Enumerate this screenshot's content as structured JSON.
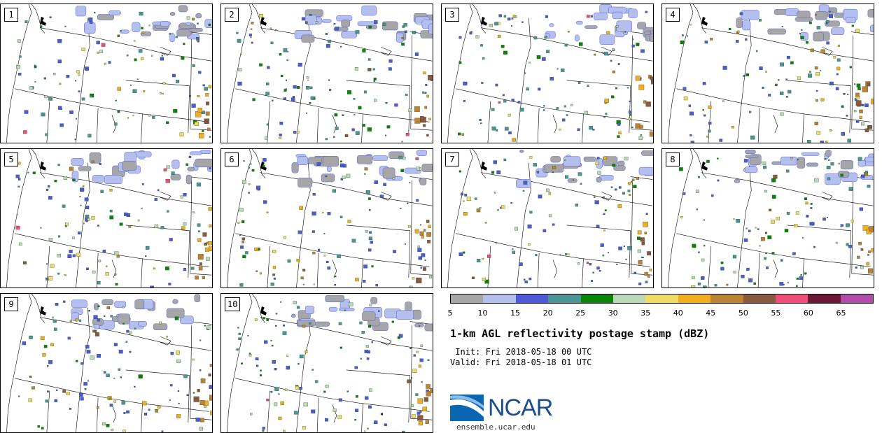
{
  "stamps": [
    {
      "label": "1",
      "seed": 11
    },
    {
      "label": "2",
      "seed": 23
    },
    {
      "label": "3",
      "seed": 37
    },
    {
      "label": "4",
      "seed": 41
    },
    {
      "label": "5",
      "seed": 53
    },
    {
      "label": "6",
      "seed": 67
    },
    {
      "label": "7",
      "seed": 71
    },
    {
      "label": "8",
      "seed": 83
    },
    {
      "label": "9",
      "seed": 97
    },
    {
      "label": "10",
      "seed": 109
    }
  ],
  "colorbar": {
    "ticks": [
      "5",
      "10",
      "15",
      "20",
      "25",
      "30",
      "35",
      "40",
      "45",
      "50",
      "55",
      "60",
      "65"
    ],
    "colors": [
      "#a6a6a6",
      "#b4bfee",
      "#4d5bdb",
      "#4b9596",
      "#0b8508",
      "#b9d9b8",
      "#f0dc62",
      "#f2ae1c",
      "#bd8232",
      "#8a5a3f",
      "#f24d7a",
      "#6b1838",
      "#b24ca8"
    ]
  },
  "title": "1-km AGL reflectivity postage stamp (dBZ)",
  "init": " Init: Fri 2018-05-18 00 UTC",
  "valid": "Valid: Fri 2018-05-18 01 UTC",
  "logo": {
    "text": "NCAR",
    "url": "ensemble.ucar.edu",
    "colors": {
      "text": "#1b4e8c",
      "swoosh": "#2a7fc4"
    }
  }
}
